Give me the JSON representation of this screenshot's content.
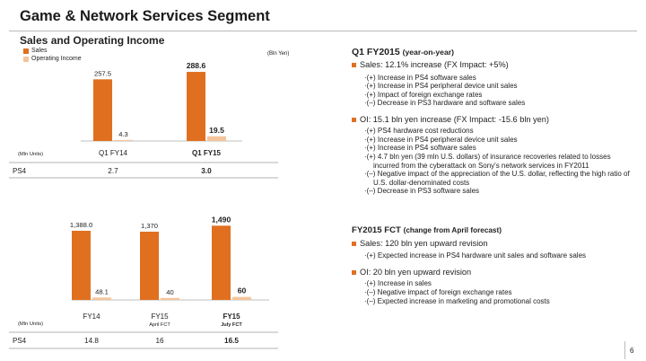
{
  "page": {
    "title": "Game & Network Services Segment",
    "page_number": "6"
  },
  "left": {
    "section_title": "Sales and Operating Income",
    "legend": {
      "sales": "Sales",
      "oi": "Operating Income"
    },
    "unit": "(Bln Yen)",
    "colors": {
      "sales": "#E07020",
      "oi": "#F5C49C"
    }
  },
  "chart_data": [
    {
      "type": "bar",
      "title": "",
      "categories": [
        "Q1 FY14",
        "Q1 FY15"
      ],
      "category_sublabels": [
        "",
        ""
      ],
      "series": [
        {
          "name": "Sales",
          "values": [
            257.5,
            288.6
          ],
          "labels": [
            "257.5",
            "288.6"
          ]
        },
        {
          "name": "Operating Income",
          "values": [
            4.3,
            19.5
          ],
          "labels": [
            "4.3",
            "19.5"
          ]
        }
      ],
      "unit": "(Bln Yen)",
      "ylim": [
        0,
        300
      ],
      "table": {
        "header": "(Mln Units)",
        "row_label": "PS4",
        "values": [
          "2.7",
          "3.0"
        ]
      }
    },
    {
      "type": "bar",
      "title": "",
      "categories": [
        "FY14",
        "FY15",
        "FY15"
      ],
      "category_sublabels": [
        "",
        "April FCT",
        "July FCT"
      ],
      "series": [
        {
          "name": "Sales",
          "values": [
            1388.0,
            1370,
            1490
          ],
          "labels": [
            "1,388.0",
            "1,370",
            "1,490"
          ]
        },
        {
          "name": "Operating Income",
          "values": [
            48.1,
            40,
            60
          ],
          "labels": [
            "48.1",
            "40",
            "60"
          ]
        }
      ],
      "ylim": [
        0,
        1550
      ],
      "table": {
        "header": "(Mln Units)",
        "row_label": "PS4",
        "values": [
          "14.8",
          "16",
          "16.5"
        ]
      }
    }
  ],
  "right": {
    "q1": {
      "heading": "Q1 FY2015",
      "heading_sub": "(year-on-year)",
      "sales_bullet": "Sales: 12.1% increase (FX Impact: +5%)",
      "sales_items": [
        "·(+) Increase in PS4 software sales",
        "·(+) Increase in PS4 peripheral device unit sales",
        "·(+) Impact of foreign exchange rates",
        "·(–) Decrease in PS3 hardware and software sales"
      ],
      "oi_bullet": "OI: 15.1 bln yen increase (FX Impact: -15.6 bln yen)",
      "oi_items": [
        "·(+) PS4 hardware cost reductions",
        "·(+) Increase in PS4 peripheral device unit sales",
        "·(+) Increase in PS4 software sales",
        "·(+) 4.7 bln yen (39 mln U.S. dollars) of insurance recoveries related to losses incurred from the cyberattack on Sony's network services in FY2011",
        "·(–) Negative impact of the appreciation of the U.S. dollar, reflecting the high ratio of U.S. dollar-denominated costs",
        "·(–) Decrease in PS3 software sales"
      ]
    },
    "fct": {
      "heading": "FY2015 FCT",
      "heading_sub": "(change from April forecast)",
      "sales_bullet": "Sales: 120 bln yen upward revision",
      "sales_items": [
        "·(+) Expected increase in PS4 hardware unit sales and software sales"
      ],
      "oi_bullet": "OI: 20 bln yen upward revision",
      "oi_items": [
        "·(+) Increase in sales",
        "·(–) Negative impact of foreign exchange rates",
        "·(–) Expected increase in marketing and promotional costs"
      ]
    }
  }
}
